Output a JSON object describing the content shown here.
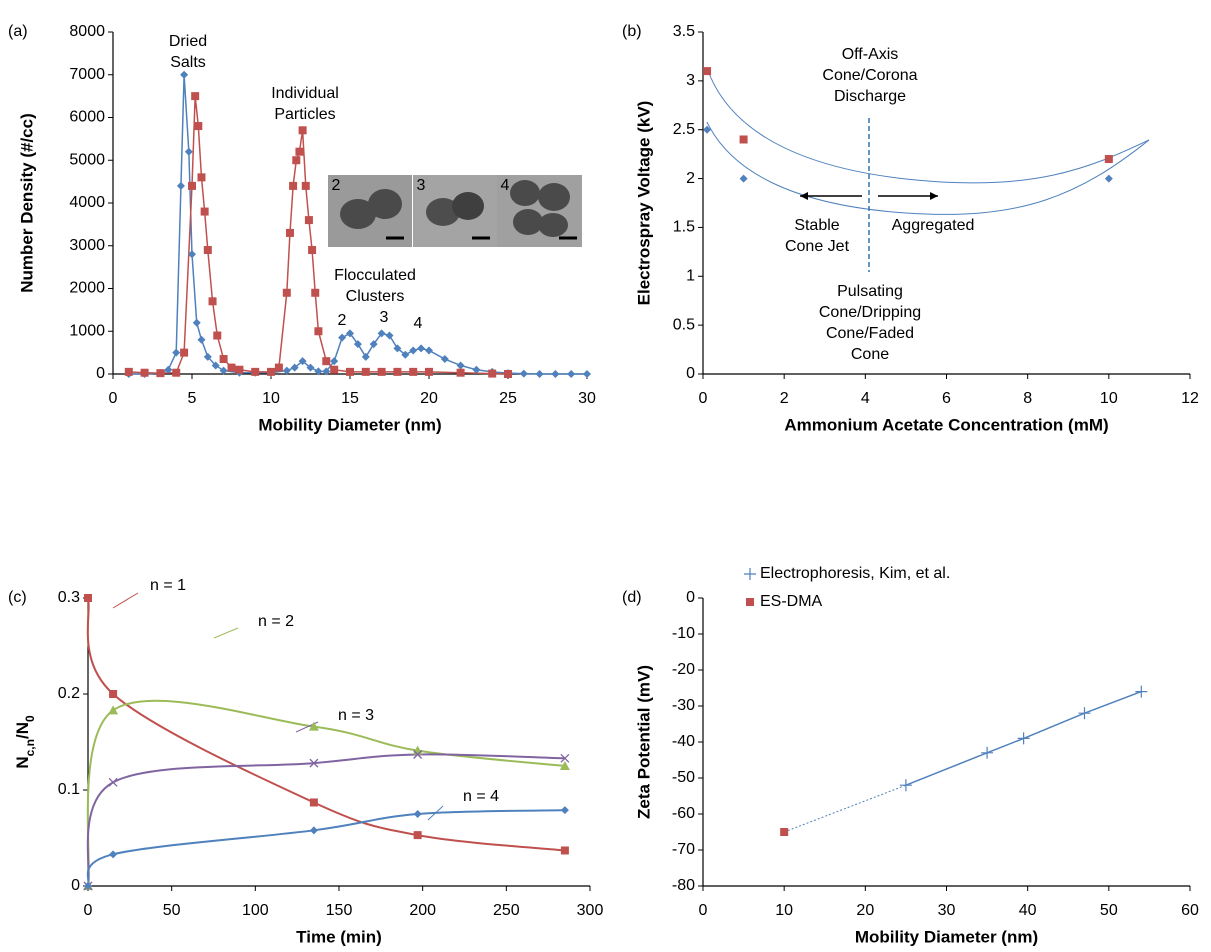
{
  "chart_data": [
    {
      "type": "line",
      "panel_label": "(a)",
      "smooth": false,
      "x_label": "Mobility Diameter (nm)",
      "y_label": "Number Density (#/cc)",
      "xlim": [
        0,
        30
      ],
      "xticks": [
        0,
        5,
        10,
        15,
        20,
        25,
        30
      ],
      "ylim": [
        0,
        8000
      ],
      "yticks": [
        0,
        1000,
        2000,
        3000,
        4000,
        5000,
        6000,
        7000,
        8000
      ],
      "series": [
        {
          "color": "#4f81bd",
          "marker": "diamond",
          "x": [
            1,
            2,
            3,
            3.5,
            4,
            4.3,
            4.5,
            4.8,
            5,
            5.3,
            5.6,
            6,
            6.5,
            7,
            8,
            9,
            10,
            11,
            11.5,
            12,
            12.5,
            13,
            13.5,
            14,
            14.5,
            15,
            15.5,
            16,
            16.5,
            17,
            17.5,
            18,
            18.5,
            19,
            19.5,
            20,
            21,
            22,
            23,
            24,
            25,
            26,
            27,
            28,
            29,
            30
          ],
          "values": [
            0,
            0,
            20,
            100,
            500,
            4400,
            7000,
            5200,
            2800,
            1200,
            800,
            400,
            200,
            80,
            30,
            30,
            30,
            80,
            150,
            300,
            150,
            60,
            60,
            300,
            850,
            950,
            700,
            400,
            700,
            950,
            900,
            600,
            450,
            550,
            600,
            550,
            350,
            200,
            100,
            50,
            20,
            10,
            0,
            0,
            0,
            0
          ]
        },
        {
          "color": "#c0504d",
          "marker": "square",
          "x": [
            1,
            2,
            3,
            4,
            4.5,
            5,
            5.2,
            5.4,
            5.6,
            5.8,
            6,
            6.3,
            6.6,
            7,
            7.5,
            8,
            9,
            10,
            10.5,
            11,
            11.2,
            11.4,
            11.6,
            11.8,
            12,
            12.2,
            12.4,
            12.6,
            12.8,
            13,
            13.5,
            14,
            15,
            16,
            17,
            18,
            19,
            20,
            22,
            24,
            25
          ],
          "values": [
            50,
            30,
            20,
            30,
            500,
            4400,
            6500,
            5800,
            4600,
            3800,
            2900,
            1700,
            900,
            350,
            150,
            100,
            50,
            50,
            150,
            1900,
            3300,
            4400,
            5000,
            5200,
            5700,
            4400,
            3600,
            2900,
            1900,
            1000,
            300,
            100,
            50,
            50,
            50,
            50,
            50,
            50,
            30,
            10,
            0
          ]
        }
      ],
      "annotations": [
        {
          "lines": [
            "Dried",
            "Salts"
          ]
        },
        {
          "lines": [
            "Individual",
            "Particles"
          ]
        },
        {
          "lines": [
            "Flocculated",
            "Clusters"
          ]
        },
        {
          "lines": [
            "2"
          ]
        },
        {
          "lines": [
            "3"
          ]
        },
        {
          "lines": [
            "4"
          ]
        }
      ],
      "inset_labels": [
        "2",
        "3",
        "4"
      ]
    },
    {
      "type": "scatter",
      "panel_label": "(b)",
      "x_label": "Ammonium Acetate Concentration (mM)",
      "y_label": "Electrospray Voltage (kV)",
      "xlim": [
        0,
        12
      ],
      "xticks": [
        0,
        2,
        4,
        6,
        8,
        10,
        12
      ],
      "ylim": [
        0,
        3.5
      ],
      "yticks": [
        0,
        0.5,
        1,
        1.5,
        2,
        2.5,
        3,
        3.5
      ],
      "series": [
        {
          "color": "#4f81bd",
          "marker": "diamond",
          "x": [
            0.1,
            1,
            10
          ],
          "values": [
            2.5,
            2,
            2
          ]
        },
        {
          "color": "#c0504d",
          "marker": "square",
          "x": [
            0.1,
            1,
            10
          ],
          "values": [
            3.1,
            2.4,
            2.2
          ]
        }
      ],
      "annotations": [
        {
          "lines": [
            "Off-Axis",
            "Cone/Corona",
            "Discharge"
          ],
          "color": "#ff0000"
        },
        {
          "lines": [
            "Stable",
            "Cone Jet"
          ],
          "color": "#000000"
        },
        {
          "lines": [
            "Aggregated"
          ],
          "color": "#000000"
        },
        {
          "lines": [
            "Pulsating",
            "Cone/Dripping",
            "Cone/Faded",
            "Cone"
          ],
          "color": "#ff0000"
        }
      ]
    },
    {
      "type": "line",
      "panel_label": "(c)",
      "smooth": true,
      "x_label": "Time (min)",
      "y_label": [
        "N",
        "c,n",
        "/N",
        "0"
      ],
      "xlim": [
        0,
        300
      ],
      "xticks": [
        0,
        50,
        100,
        150,
        200,
        250,
        300
      ],
      "ylim": [
        0,
        0.3
      ],
      "yticks": [
        0,
        0.1,
        0.2,
        0.3
      ],
      "series": [
        {
          "name": "n = 1",
          "color": "#c0504d",
          "marker": "square",
          "x": [
            0,
            15,
            135,
            197,
            285
          ],
          "values": [
            0.3,
            0.2,
            0.087,
            0.053,
            0.037
          ]
        },
        {
          "name": "n = 2",
          "color": "#9bbb59",
          "marker": "triangle",
          "x": [
            0,
            15,
            135,
            197,
            285
          ],
          "values": [
            0,
            0.183,
            0.166,
            0.141,
            0.125
          ]
        },
        {
          "name": "n = 3",
          "color": "#8064a2",
          "marker": "x",
          "x": [
            0,
            15,
            135,
            197,
            285
          ],
          "values": [
            0,
            0.108,
            0.128,
            0.137,
            0.133
          ]
        },
        {
          "name": "n = 4",
          "color": "#4f81bd",
          "marker": "diamond",
          "x": [
            0,
            15,
            135,
            197,
            285
          ],
          "values": [
            0,
            0.033,
            0.058,
            0.075,
            0.079
          ]
        }
      ]
    },
    {
      "type": "scatter",
      "panel_label": "(d)",
      "legend": "upper left",
      "x_label": "Mobility Diameter (nm)",
      "y_label": "Zeta Potential (mV)",
      "xlim": [
        0,
        60
      ],
      "xticks": [
        0,
        10,
        20,
        30,
        40,
        50,
        60
      ],
      "ylim": [
        -80,
        0
      ],
      "yticks": [
        -80,
        -70,
        -60,
        -50,
        -40,
        -30,
        -20,
        -10,
        0
      ],
      "series": [
        {
          "name": "Electrophoresis, Kim, et al.",
          "color": "#4f81bd",
          "marker": "plus",
          "line": true,
          "x": [
            25,
            35,
            39.5,
            47,
            54
          ],
          "values": [
            -52,
            -43,
            -39,
            -32,
            -26
          ]
        },
        {
          "name": "ES-DMA",
          "color": "#c0504d",
          "marker": "square",
          "x": [
            10
          ],
          "values": [
            -65
          ]
        }
      ]
    }
  ]
}
